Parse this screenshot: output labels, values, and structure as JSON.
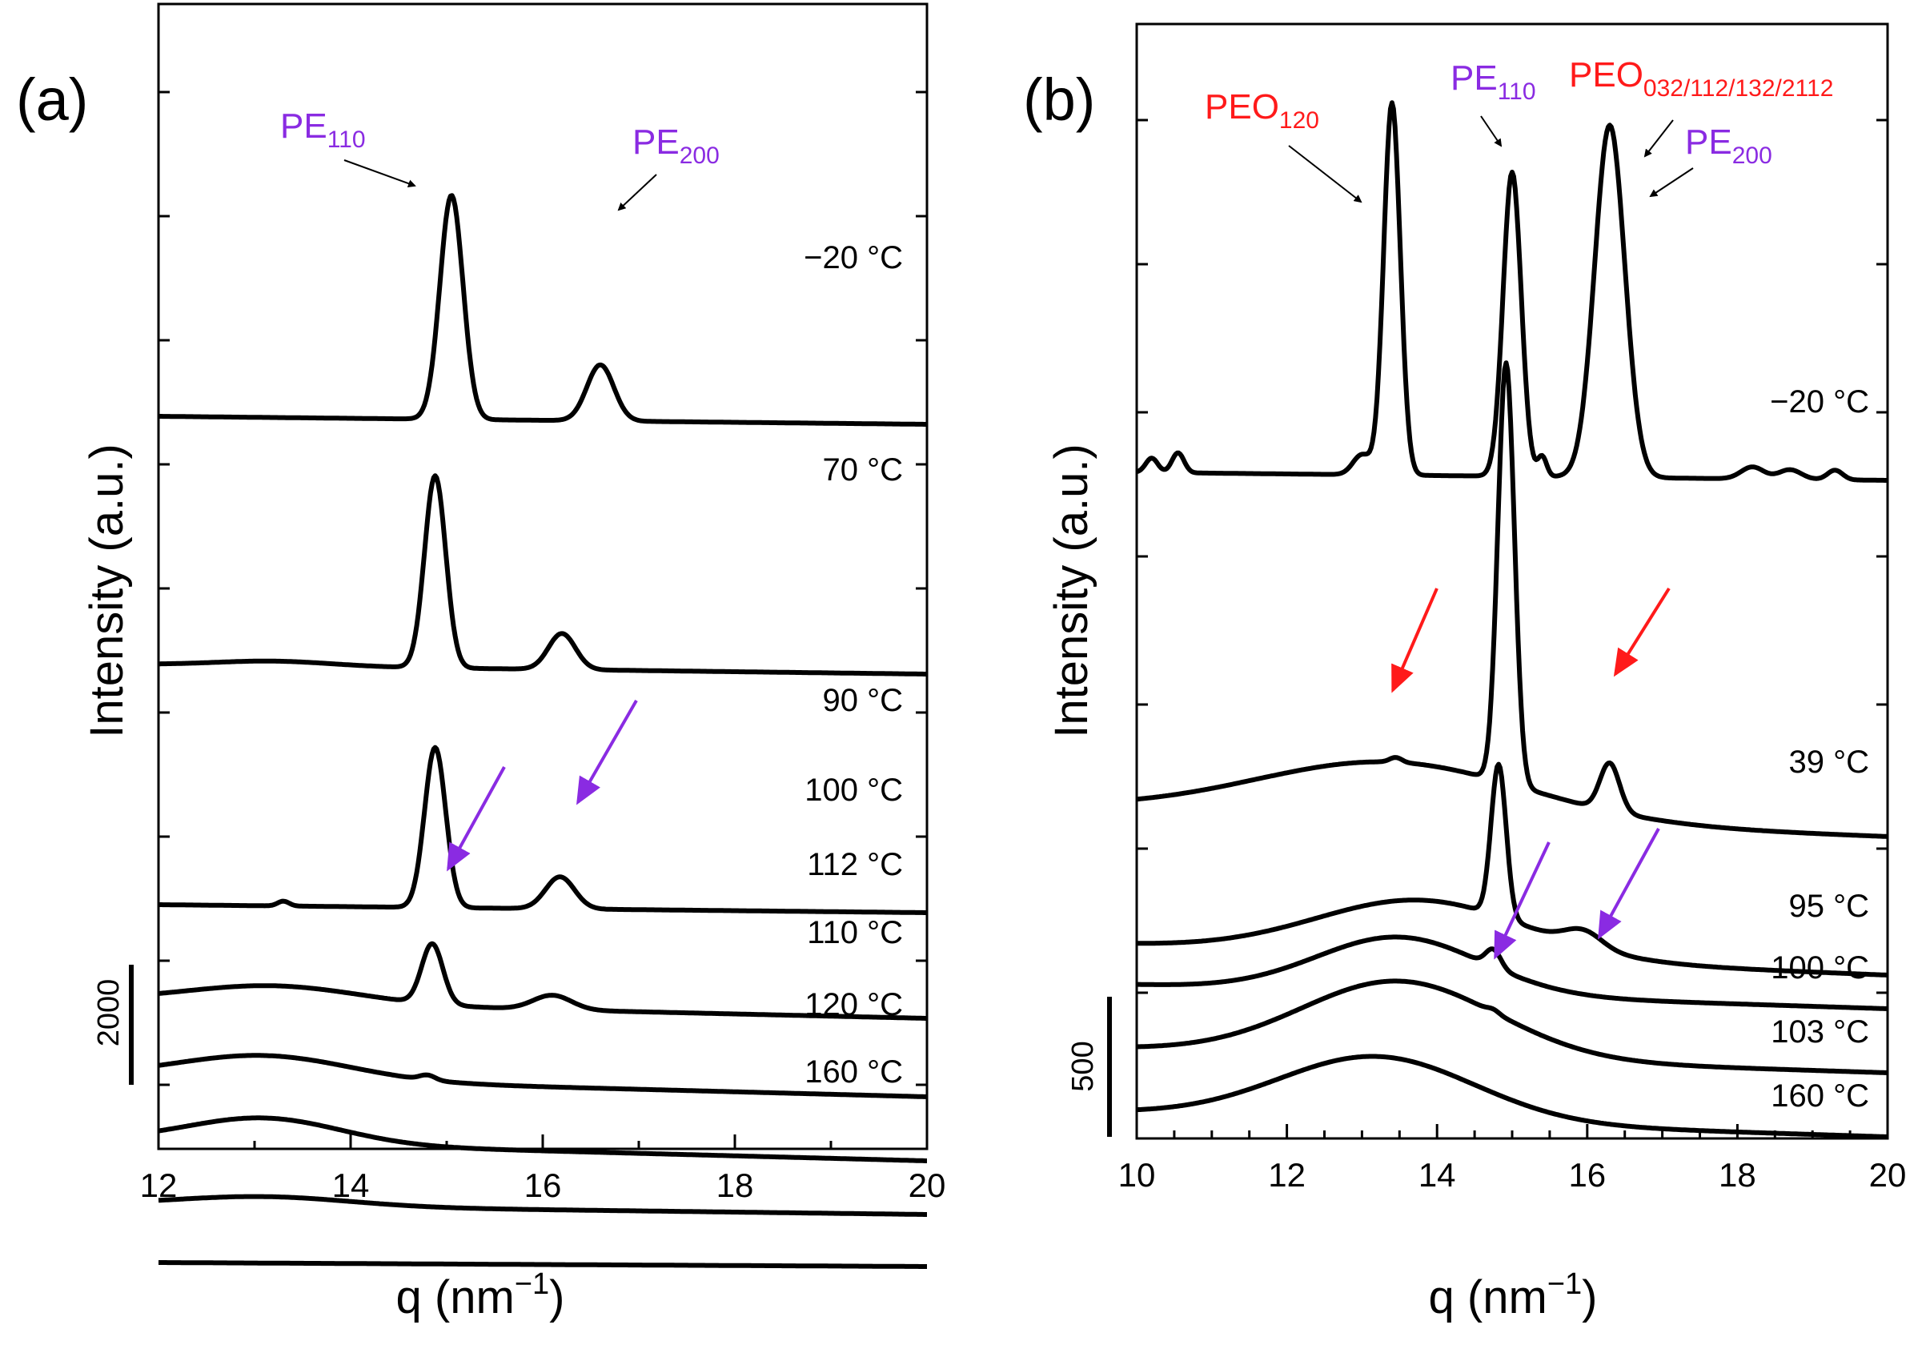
{
  "colors": {
    "pe": "#8a2be2",
    "peo": "#ff1a1a",
    "line": "#000000"
  },
  "chart_data": [
    {
      "type": "line",
      "panel_label": "(a)",
      "xlabel": "q (nm",
      "xlabel_sup": "−1",
      "xlabel_close": ")",
      "ylabel": "Intensity (a.u.)",
      "xlim": [
        12,
        20
      ],
      "xticks": [
        "12",
        "14",
        "16",
        "18",
        "20"
      ],
      "scale_bar": {
        "label": "2000",
        "value": 2000
      },
      "annotations": [
        {
          "base": "PE",
          "sub": "110",
          "color": "pe",
          "points_to_q": 14.7
        },
        {
          "base": "PE",
          "sub": "200",
          "color": "pe",
          "points_to_q": 16.6
        }
      ],
      "series": [
        {
          "name": "−20 °C",
          "label": "−20 °C",
          "baseline": 520,
          "slope": 10,
          "bumps": [
            [
              15.05,
              0.12,
              280
            ],
            [
              16.6,
              0.14,
              70
            ]
          ]
        },
        {
          "name": "70 °C",
          "label": "70 °C",
          "baseline": 830,
          "slope": 12,
          "bumps": [
            [
              14.88,
              0.11,
              240
            ],
            [
              16.2,
              0.14,
              45
            ],
            [
              13.2,
              0.6,
              6
            ]
          ]
        },
        {
          "name": "90 °C",
          "label": "90 °C",
          "baseline": 1130,
          "slope": 10,
          "bumps": [
            [
              14.88,
              0.11,
              200
            ],
            [
              16.18,
              0.15,
              40
            ],
            [
              13.3,
              0.06,
              6
            ]
          ]
        },
        {
          "name": "100 °C",
          "label": "100 °C",
          "baseline": 1250,
          "slope": 22,
          "bumps": [
            [
              14.85,
              0.11,
              75
            ],
            [
              16.1,
              0.2,
              18
            ],
            [
              13.2,
              0.9,
              22
            ]
          ]
        },
        {
          "name": "112 °C",
          "label": "112 °C",
          "baseline": 1345,
          "slope": 25,
          "bumps": [
            [
              13.1,
              0.9,
              30
            ],
            [
              14.8,
              0.08,
              6
            ]
          ]
        },
        {
          "name": "110 °C",
          "label": "110 °C",
          "baseline": 1425,
          "slope": 25,
          "bumps": [
            [
              13.1,
              0.8,
              32
            ]
          ]
        },
        {
          "name": "120 °C",
          "label": "120 °C",
          "baseline": 1505,
          "slope": 12,
          "bumps": [
            [
              13.1,
              0.9,
              12
            ]
          ]
        },
        {
          "name": "160 °C",
          "label": "160 °C",
          "baseline": 1577,
          "slope": 5,
          "bumps": []
        }
      ],
      "arrows": [
        {
          "color": "pe",
          "target_q": 16.3,
          "target_series": "100 °C"
        },
        {
          "color": "pe",
          "target_q": 14.9,
          "target_series": "112 °C"
        }
      ]
    },
    {
      "type": "line",
      "panel_label": "(b)",
      "xlabel": "q (nm",
      "xlabel_sup": "−1",
      "xlabel_close": ")",
      "ylabel": "Intensity (a.u.)",
      "xlim": [
        10,
        20
      ],
      "xticks": [
        "10",
        "12",
        "14",
        "16",
        "18",
        "20"
      ],
      "scale_bar": {
        "label": "500",
        "value": 500
      },
      "annotations": [
        {
          "base": "PEO",
          "sub": "120",
          "color": "peo",
          "points_to_q": 13.3
        },
        {
          "base": "PE",
          "sub": "110",
          "color": "pe",
          "points_to_q": 15.0
        },
        {
          "base": "PEO",
          "sub": "032/112/132/2112",
          "color": "peo",
          "points_to_q": 16.4
        },
        {
          "base": "PE",
          "sub": "200",
          "color": "pe",
          "points_to_q": 16.5
        }
      ],
      "series": [
        {
          "name": "−20 °C",
          "label": "−20 °C",
          "baseline": 590,
          "slope": 10,
          "bumps": [
            [
              13.4,
              0.11,
              465
            ],
            [
              15.0,
              0.12,
              380
            ],
            [
              16.3,
              0.2,
              440
            ],
            [
              15.4,
              0.06,
              25
            ],
            [
              13.0,
              0.12,
              25
            ],
            [
              10.2,
              0.08,
              18
            ],
            [
              10.55,
              0.08,
              25
            ],
            [
              18.2,
              0.15,
              15
            ],
            [
              18.7,
              0.15,
              12
            ],
            [
              19.3,
              0.1,
              12
            ]
          ]
        },
        {
          "name": "39 °C",
          "label": "39 °C",
          "baseline": 1010,
          "slope": 35,
          "bumps": [
            [
              14.92,
              0.11,
              525
            ],
            [
              16.3,
              0.13,
              60
            ],
            [
              13.4,
              1.8,
              70
            ],
            [
              13.45,
              0.08,
              6
            ]
          ]
        },
        {
          "name": "95 °C",
          "label": "95 °C",
          "baseline": 1180,
          "slope": 38,
          "bumps": [
            [
              14.82,
              0.1,
              190
            ],
            [
              15.95,
              0.25,
              20
            ],
            [
              13.8,
              1.4,
              70
            ]
          ]
        },
        {
          "name": "100 °C",
          "label": "100 °C",
          "baseline": 1230,
          "slope": 30,
          "bumps": [
            [
              14.75,
              0.1,
              22
            ],
            [
              13.5,
              1.1,
              70
            ]
          ]
        },
        {
          "name": "103 °C",
          "label": "103 °C",
          "baseline": 1310,
          "slope": 30,
          "bumps": [
            [
              13.5,
              1.3,
              95
            ],
            [
              14.75,
              0.08,
              4
            ]
          ]
        },
        {
          "name": "160 °C",
          "label": "160 °C",
          "baseline": 1390,
          "slope": 30,
          "bumps": [
            [
              13.2,
              1.3,
              80
            ]
          ]
        }
      ],
      "arrows": [
        {
          "color": "peo",
          "target_q": 13.4,
          "target_series": "39 °C"
        },
        {
          "color": "peo",
          "target_q": 16.3,
          "target_series": "39 °C"
        },
        {
          "color": "pe",
          "target_q": 14.8,
          "target_series": "103 °C"
        },
        {
          "color": "pe",
          "target_q": 16.05,
          "target_series": "100 °C"
        }
      ]
    }
  ]
}
